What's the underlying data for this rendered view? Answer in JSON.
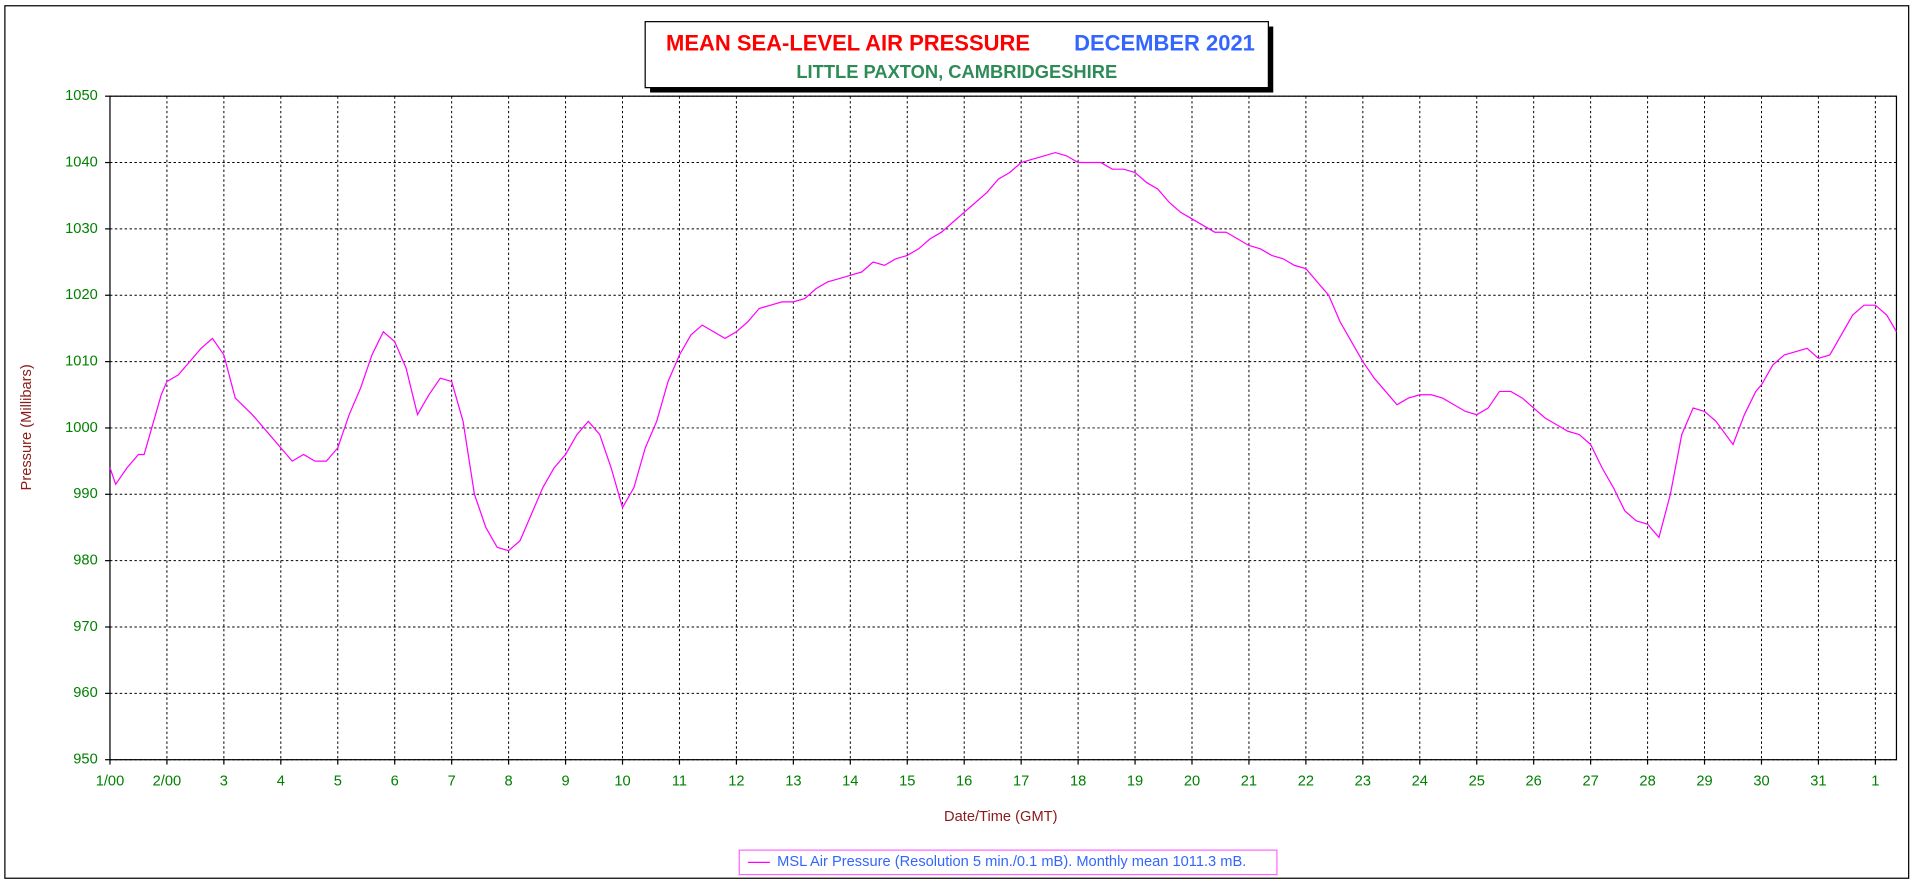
{
  "chart_data": {
    "type": "line",
    "title": "MEAN SEA-LEVEL AIR PRESSURE",
    "title_date": "DECEMBER 2021",
    "subtitle": "LITTLE PAXTON, CAMBRIDGESHIRE",
    "x_label": "Date/Time (GMT)",
    "y_label": "Pressure (Millibars)",
    "x": [
      0,
      0.1,
      0.3,
      0.5,
      0.6,
      0.8,
      0.9,
      1.0,
      1.2,
      1.4,
      1.6,
      1.8,
      2.0,
      2.2,
      2.5,
      2.8,
      3.0,
      3.2,
      3.4,
      3.6,
      3.8,
      4.0,
      4.2,
      4.4,
      4.6,
      4.8,
      5.0,
      5.2,
      5.4,
      5.6,
      5.8,
      6.0,
      6.2,
      6.4,
      6.6,
      6.8,
      7.0,
      7.2,
      7.4,
      7.6,
      7.8,
      8.0,
      8.2,
      8.4,
      8.6,
      8.8,
      9.0,
      9.2,
      9.4,
      9.6,
      9.8,
      10.0,
      10.2,
      10.4,
      10.6,
      10.8,
      11.0,
      11.2,
      11.4,
      11.6,
      11.8,
      12.0,
      12.2,
      12.4,
      12.6,
      12.8,
      13.0,
      13.2,
      13.4,
      13.6,
      13.8,
      14.0,
      14.2,
      14.4,
      14.6,
      14.8,
      15.0,
      15.2,
      15.4,
      15.6,
      15.8,
      16.0,
      16.2,
      16.4,
      16.6,
      16.8,
      17.0,
      17.2,
      17.4,
      17.6,
      17.8,
      18.0,
      18.2,
      18.4,
      18.6,
      18.8,
      19.0,
      19.2,
      19.4,
      19.6,
      19.8,
      20.0,
      20.2,
      20.4,
      20.6,
      20.8,
      21.0,
      21.2,
      21.4,
      21.6,
      21.8,
      22.0,
      22.2,
      22.4,
      22.6,
      22.8,
      23.0,
      23.2,
      23.4,
      23.6,
      23.8,
      24.0,
      24.2,
      24.4,
      24.6,
      24.8,
      25.0,
      25.2,
      25.4,
      25.6,
      25.8,
      26.0,
      26.2,
      26.4,
      26.6,
      26.8,
      27.0,
      27.2,
      27.4,
      27.6,
      27.8,
      28.0,
      28.2,
      28.5,
      28.7,
      28.9,
      29.0,
      29.2,
      29.4,
      29.6,
      29.8,
      30.0,
      30.2,
      30.4,
      30.6,
      30.8,
      31.0,
      31.2,
      31.37
    ],
    "series": [
      {
        "name": "MSL Air Pressure (Resolution 5 min./0.1 mB). Monthly mean 1011.3 mB.",
        "color": "#ff00ff",
        "values": [
          994,
          991.5,
          994,
          996,
          996,
          1002,
          1005,
          1007,
          1008,
          1010,
          1012,
          1013.5,
          1011,
          1004.5,
          1002,
          999,
          997,
          995,
          996,
          995,
          995,
          997,
          1002,
          1006,
          1011,
          1014.5,
          1013,
          1009,
          1002,
          1005,
          1007.5,
          1007,
          1001,
          990,
          985,
          982,
          981.5,
          983,
          987,
          991,
          994,
          996,
          999,
          1001,
          999,
          994,
          988,
          991,
          997,
          1001,
          1007,
          1011,
          1014,
          1015.5,
          1014.5,
          1013.5,
          1014.5,
          1016,
          1018,
          1018.5,
          1019,
          1019,
          1019.5,
          1021,
          1022,
          1022.5,
          1023,
          1023.5,
          1025,
          1024.5,
          1025.5,
          1026,
          1027,
          1028.5,
          1029.5,
          1031,
          1032.5,
          1034,
          1035.5,
          1037.5,
          1038.5,
          1040,
          1040.5,
          1041,
          1041.5,
          1041,
          1040,
          1040,
          1040,
          1039,
          1039,
          1038.5,
          1037,
          1036,
          1034,
          1032.5,
          1031.5,
          1030.5,
          1029.5,
          1029.5,
          1028.5,
          1027.5,
          1027,
          1026,
          1025.5,
          1024.5,
          1024,
          1022,
          1020,
          1016,
          1013,
          1010,
          1007.5,
          1005.5,
          1003.5,
          1004.5,
          1005,
          1005,
          1004.5,
          1003.5,
          1002.5,
          1002,
          1003,
          1005.5,
          1005.5,
          1004.5,
          1003,
          1001.5,
          1000.5,
          999.5,
          999,
          997.5,
          994,
          991,
          987.5,
          986,
          985.5,
          983.5,
          990,
          999,
          1003,
          1002.5,
          1001,
          997.5,
          1002,
          1005.5,
          1006.5,
          1009.5,
          1011,
          1011.5,
          1012,
          1010.5,
          1011,
          1014,
          1017,
          1018.5,
          1018.5,
          1017,
          1014.5
        ]
      }
    ],
    "xlim": [
      0,
      31.37
    ],
    "xticks": [
      {
        "value": 0,
        "label": "1/00"
      },
      {
        "value": 1,
        "label": "2/00"
      },
      {
        "value": 2,
        "label": "3"
      },
      {
        "value": 3,
        "label": "4"
      },
      {
        "value": 4,
        "label": "5"
      },
      {
        "value": 5,
        "label": "6"
      },
      {
        "value": 6,
        "label": "7"
      },
      {
        "value": 7,
        "label": "8"
      },
      {
        "value": 8,
        "label": "9"
      },
      {
        "value": 9,
        "label": "10"
      },
      {
        "value": 10,
        "label": "11"
      },
      {
        "value": 11,
        "label": "12"
      },
      {
        "value": 12,
        "label": "13"
      },
      {
        "value": 13,
        "label": "14"
      },
      {
        "value": 14,
        "label": "15"
      },
      {
        "value": 15,
        "label": "16"
      },
      {
        "value": 16,
        "label": "17"
      },
      {
        "value": 17,
        "label": "18"
      },
      {
        "value": 18,
        "label": "19"
      },
      {
        "value": 19,
        "label": "20"
      },
      {
        "value": 20,
        "label": "21"
      },
      {
        "value": 21,
        "label": "22"
      },
      {
        "value": 22,
        "label": "23"
      },
      {
        "value": 23,
        "label": "24"
      },
      {
        "value": 24,
        "label": "25"
      },
      {
        "value": 25,
        "label": "26"
      },
      {
        "value": 26,
        "label": "27"
      },
      {
        "value": 27,
        "label": "28"
      },
      {
        "value": 28,
        "label": "29"
      },
      {
        "value": 29,
        "label": "30"
      },
      {
        "value": 30,
        "label": "31"
      },
      {
        "value": 31,
        "label": "1"
      }
    ],
    "ylim": [
      950,
      1050
    ],
    "yticks": [
      950,
      960,
      970,
      980,
      990,
      1000,
      1010,
      1020,
      1030,
      1040,
      1050
    ],
    "grid": true
  }
}
